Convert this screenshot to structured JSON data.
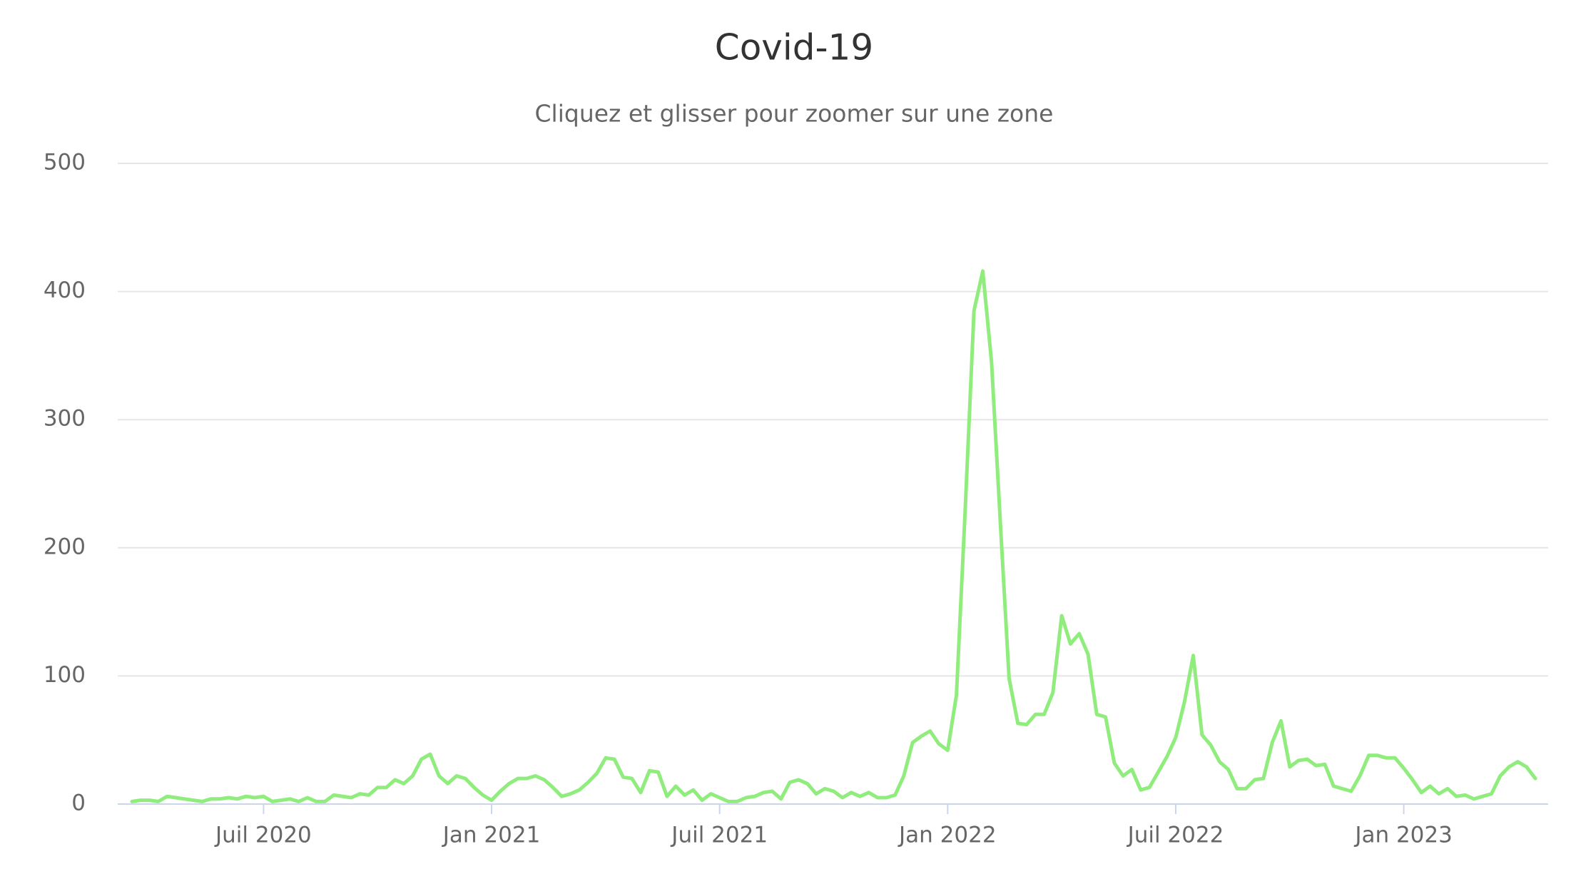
{
  "chart_data": {
    "type": "line",
    "title": "Covid-19",
    "subtitle": "Cliquez et glisser pour zoomer sur une zone",
    "categories": [
      null,
      null,
      null,
      null,
      null,
      null,
      null,
      null,
      null,
      null,
      null,
      null,
      null,
      null,
      null,
      "Juil 2020",
      null,
      null,
      null,
      null,
      null,
      null,
      null,
      null,
      null,
      null,
      null,
      null,
      null,
      null,
      null,
      null,
      null,
      null,
      null,
      null,
      null,
      null,
      null,
      null,
      null,
      "Jan 2021",
      null,
      null,
      null,
      null,
      null,
      null,
      null,
      null,
      null,
      null,
      null,
      null,
      null,
      null,
      null,
      null,
      null,
      null,
      null,
      null,
      null,
      null,
      null,
      null,
      null,
      "Juil 2021",
      null,
      null,
      null,
      null,
      null,
      null,
      null,
      null,
      null,
      null,
      null,
      null,
      null,
      null,
      null,
      null,
      null,
      null,
      null,
      null,
      null,
      null,
      null,
      null,
      null,
      "Jan 2022",
      null,
      null,
      null,
      null,
      null,
      null,
      null,
      null,
      null,
      null,
      null,
      null,
      null,
      null,
      null,
      null,
      null,
      null,
      null,
      null,
      null,
      null,
      null,
      null,
      null,
      "Juil 2022",
      null,
      null,
      null,
      null,
      null,
      null,
      null,
      null,
      null,
      null,
      null,
      null,
      null,
      null,
      null,
      null,
      null,
      null,
      null,
      null,
      null,
      null,
      null,
      null,
      null,
      "Jan 2023",
      null,
      null,
      null,
      null,
      null,
      null,
      null,
      null,
      null,
      null,
      null,
      null,
      null,
      null,
      null
    ],
    "series": [
      {
        "color": "#90ed7d",
        "values": [
          2,
          3,
          3,
          2,
          6,
          5,
          4,
          3,
          2,
          4,
          4,
          5,
          4,
          6,
          5,
          6,
          2,
          3,
          4,
          2,
          5,
          2,
          2,
          7,
          6,
          5,
          8,
          7,
          13,
          13,
          19,
          16,
          22,
          35,
          39,
          22,
          16,
          22,
          20,
          13,
          7,
          3,
          10,
          16,
          20,
          20,
          22,
          19,
          13,
          6,
          8,
          11,
          17,
          24,
          36,
          35,
          21,
          20,
          9,
          26,
          25,
          6,
          14,
          7,
          11,
          3,
          8,
          5,
          2,
          2,
          5,
          6,
          9,
          10,
          4,
          17,
          19,
          16,
          8,
          12,
          10,
          5,
          9,
          6,
          9,
          5,
          5,
          7,
          22,
          48,
          53,
          57,
          47,
          42,
          85,
          230,
          385,
          416,
          345,
          220,
          98,
          63,
          62,
          70,
          70,
          87,
          147,
          125,
          133,
          117,
          70,
          68,
          32,
          22,
          27,
          11,
          13,
          25,
          37,
          52,
          80,
          116,
          54,
          46,
          33,
          27,
          12,
          12,
          19,
          20,
          48,
          65,
          29,
          34,
          35,
          30,
          31,
          14,
          12,
          10,
          22,
          38,
          38,
          36,
          36,
          28,
          19,
          9,
          14,
          8,
          12,
          6,
          7,
          4,
          6,
          8,
          22,
          29,
          33,
          29,
          20
        ]
      }
    ],
    "ylim": [
      0,
      500
    ],
    "yticks": [
      0,
      100,
      200,
      300,
      400,
      500
    ],
    "grid": true
  }
}
